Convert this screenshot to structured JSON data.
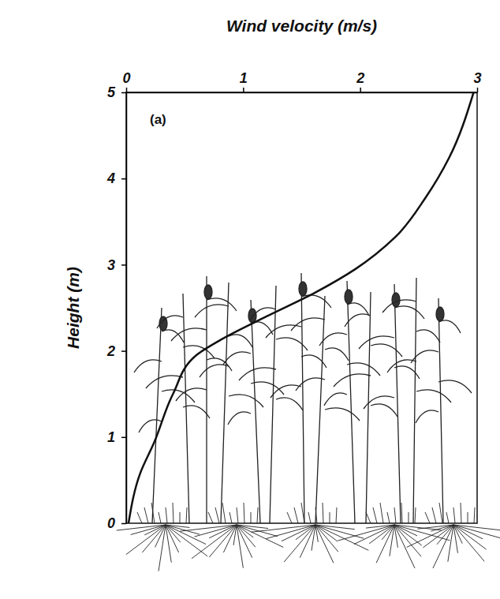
{
  "chart_data": {
    "type": "line",
    "x_label": "Wind velocity (m/s)",
    "y_label": "Height (m)",
    "annotation": "(a)",
    "x": [
      0.02,
      0.12,
      0.24,
      0.4,
      0.6,
      0.81,
      1.2,
      1.62,
      1.96,
      2.3,
      2.56,
      2.76,
      2.97
    ],
    "values": [
      0,
      0.58,
      0.94,
      1.5,
      1.95,
      2.13,
      2.4,
      2.68,
      2.95,
      3.32,
      3.78,
      4.24,
      5
    ],
    "color": "#111111",
    "xlim": [
      0,
      3
    ],
    "xticks": [
      0,
      1,
      2,
      3
    ],
    "ylim": [
      0,
      5
    ],
    "yticks": [
      0,
      1,
      2,
      3,
      4,
      5
    ],
    "grid": false
  }
}
